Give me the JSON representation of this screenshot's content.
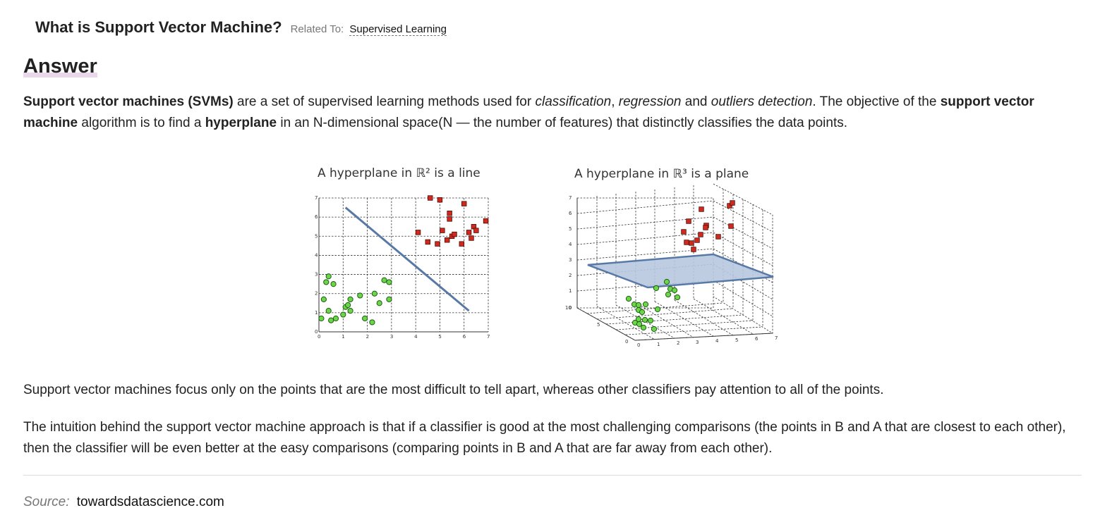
{
  "question": {
    "title": "What is Support Vector Machine?",
    "related_label": "Related To:",
    "related_link": "Supervised Learning"
  },
  "answer": {
    "heading": "Answer",
    "p1": [
      {
        "t": "Support vector machines (SVMs)",
        "s": "b"
      },
      {
        "t": " are a set of supervised learning methods used for "
      },
      {
        "t": "classification",
        "s": "i"
      },
      {
        "t": ", "
      },
      {
        "t": "regression",
        "s": "i"
      },
      {
        "t": " and "
      },
      {
        "t": "outliers detection",
        "s": "i"
      },
      {
        "t": ". The objective of the "
      },
      {
        "t": "support vector machine",
        "s": "b"
      },
      {
        "t": " algorithm is to find a "
      },
      {
        "t": "hyperplane",
        "s": "b"
      },
      {
        "t": " in an N-dimensional space(N — the number of features) that distinctly classifies the data points."
      }
    ],
    "p2": "Support vector machines focus only on the points that are the most difficult to tell apart, whereas other classifiers pay attention to all of the points.",
    "p3": "The intuition behind the support vector machine approach is that if a classifier is good at the most challenging comparisons (the points in B and A that are closest to each other), then the classifier will be even better at the easy comparisons (comparing points in B and A that are far away from each other)."
  },
  "source": {
    "label": "Source:",
    "link": "towardsdatascience.com"
  },
  "chart_data": [
    {
      "type": "scatter",
      "title": "A hyperplane in ℝ² is a line",
      "xlim": [
        0,
        7
      ],
      "ylim": [
        0,
        7
      ],
      "xticks": [
        "0",
        "1",
        "2",
        "3",
        "4",
        "5",
        "6",
        "7"
      ],
      "yticks": [
        "0",
        "1",
        "2",
        "3",
        "4",
        "5",
        "6",
        "7"
      ],
      "grid": true,
      "series": [
        {
          "marker": "circle",
          "color": "#6bd64a",
          "x": [
            0.1,
            0.2,
            0.3,
            0.4,
            0.4,
            0.5,
            0.6,
            0.7,
            1.0,
            1.1,
            1.2,
            1.3,
            1.3,
            1.7,
            1.9,
            2.2,
            2.3,
            2.5,
            2.7,
            2.9,
            2.9
          ],
          "y": [
            0.7,
            1.7,
            2.6,
            2.9,
            1.1,
            0.6,
            2.5,
            0.7,
            0.9,
            1.3,
            1.4,
            1.7,
            1.1,
            1.9,
            0.7,
            0.5,
            2.0,
            1.5,
            2.7,
            1.7,
            2.6
          ]
        },
        {
          "marker": "square",
          "color": "#d02a1e",
          "x": [
            4.1,
            4.5,
            4.6,
            4.9,
            5.0,
            5.1,
            5.3,
            5.4,
            5.4,
            5.5,
            5.6,
            5.9,
            6.0,
            6.2,
            6.3,
            6.4,
            6.5,
            6.9
          ],
          "y": [
            5.2,
            4.7,
            7.0,
            4.6,
            6.9,
            5.3,
            4.8,
            6.2,
            5.9,
            5.0,
            5.1,
            4.6,
            6.7,
            5.2,
            4.9,
            5.5,
            5.3,
            5.8
          ]
        }
      ],
      "hyperplane": {
        "x": [
          1.1,
          6.2
        ],
        "y": [
          6.5,
          1.1
        ]
      }
    },
    {
      "type": "scatter",
      "title": "A hyperplane in ℝ³ is a plane",
      "xlim": [
        0,
        7
      ],
      "ylim": [
        0,
        10
      ],
      "zlim": [
        0,
        7
      ],
      "xticks": [
        "0",
        "1",
        "2",
        "3",
        "4",
        "5",
        "6",
        "7"
      ],
      "yticks": [
        "0",
        "5",
        "10"
      ],
      "zticks": [
        "0",
        "1",
        "2",
        "3",
        "4",
        "5",
        "6",
        "7"
      ],
      "grid": true
    }
  ]
}
